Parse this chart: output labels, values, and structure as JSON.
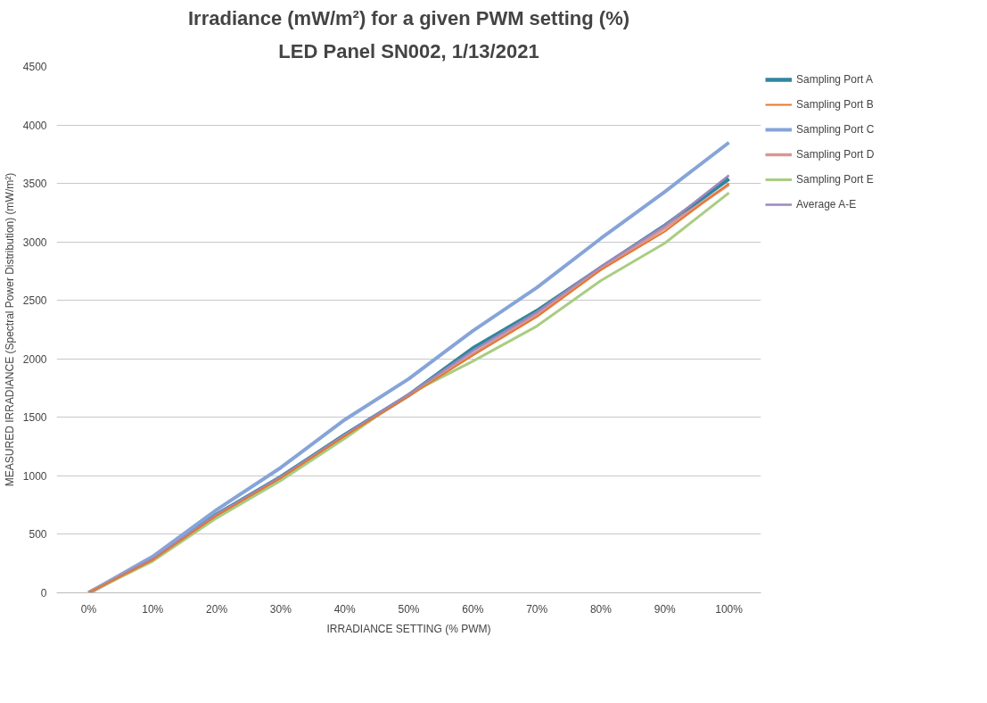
{
  "chart_data": {
    "type": "line",
    "title": "Irradiance (mW/m²) for a given PWM setting (%)",
    "subtitle": "LED Panel SN002, 1/13/2021",
    "xlabel": "IRRADIANCE SETTING (% PWM)",
    "ylabel": "MEASURED IRRADIANCE (Spectral Power Distribution) (mW/m²)",
    "categories": [
      "0%",
      "10%",
      "20%",
      "30%",
      "40%",
      "50%",
      "60%",
      "70%",
      "80%",
      "90%",
      "100%"
    ],
    "series": [
      {
        "name": "Sampling Port A",
        "color": "#31869c",
        "values": [
          0,
          290,
          670,
          990,
          1350,
          1690,
          2090,
          2410,
          2780,
          3140,
          3540
        ]
      },
      {
        "name": "Sampling Port B",
        "color": "#e6772e",
        "values": [
          0,
          280,
          660,
          980,
          1340,
          1680,
          2030,
          2360,
          2760,
          3090,
          3500
        ]
      },
      {
        "name": "Sampling Port C",
        "color": "#86a4d8",
        "values": [
          0,
          310,
          710,
          1070,
          1480,
          1830,
          2240,
          2610,
          3030,
          3430,
          3850
        ]
      },
      {
        "name": "Sampling Port D",
        "color": "#d99694",
        "values": [
          0,
          285,
          665,
          985,
          1345,
          1690,
          2040,
          2380,
          2770,
          3120,
          3490
        ]
      },
      {
        "name": "Sampling Port E",
        "color": "#a9cd82",
        "values": [
          0,
          270,
          640,
          960,
          1320,
          1700,
          1980,
          2280,
          2670,
          2990,
          3420
        ]
      },
      {
        "name": "Average A-E",
        "color": "#9b88bd",
        "values": [
          0,
          290,
          670,
          990,
          1350,
          1700,
          2070,
          2400,
          2790,
          3140,
          3570
        ]
      }
    ],
    "ylim": [
      0,
      4500
    ],
    "yticks": [
      0,
      500,
      1000,
      1500,
      2000,
      2500,
      3000,
      3500,
      4000,
      4500
    ],
    "grid": "y",
    "legend": "right",
    "marker": "none",
    "line_style": "solid"
  }
}
